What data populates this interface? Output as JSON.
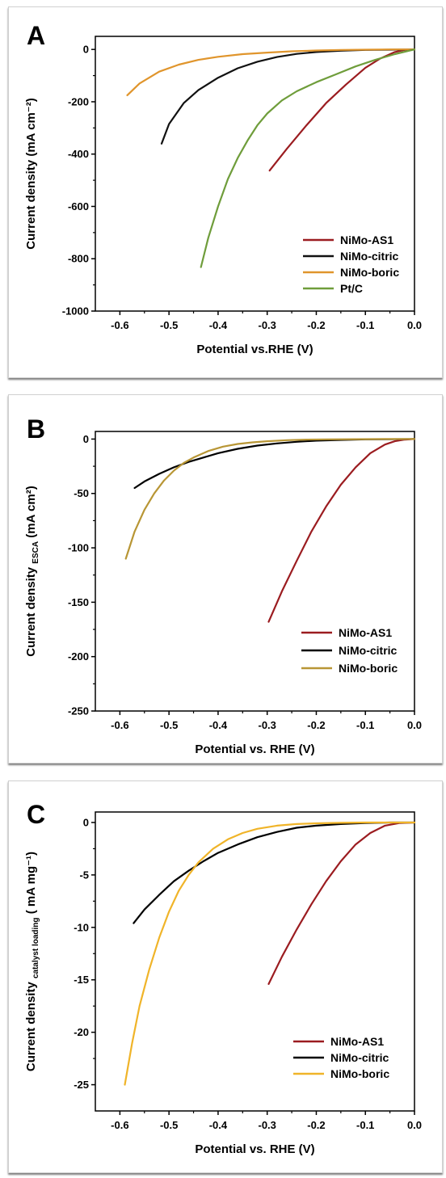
{
  "panels": [
    {
      "letter": "A",
      "chart_data": {
        "type": "line",
        "xlabel": "Potential vs.RHE (V)",
        "ylabel": "Current density (mA cm⁻²)",
        "xlim": [
          -0.65,
          0.0
        ],
        "ylim": [
          -1000,
          50
        ],
        "xticks": [
          -0.6,
          -0.5,
          -0.4,
          -0.3,
          -0.2,
          -0.1,
          0.0
        ],
        "xtick_labels": [
          "-0.6",
          "-0.5",
          "-0.4",
          "-0.3",
          "-0.2",
          "-0.1",
          "0.0"
        ],
        "yticks": [
          0,
          -200,
          -400,
          -600,
          -800,
          -1000
        ],
        "ytick_labels": [
          "0",
          "-200",
          "-400",
          "-600",
          "-800",
          "-1000"
        ],
        "legend_position": "bottom-right",
        "series": [
          {
            "name": "NiMo-AS1",
            "color": "#9b1c20",
            "x": [
              -0.295,
              -0.26,
              -0.22,
              -0.18,
              -0.14,
              -0.1,
              -0.07,
              -0.04,
              -0.02,
              0.0
            ],
            "y": [
              -463,
              -380,
              -290,
              -205,
              -135,
              -70,
              -35,
              -10,
              -2,
              0
            ]
          },
          {
            "name": "NiMo-citric",
            "color": "#111111",
            "x": [
              -0.515,
              -0.5,
              -0.47,
              -0.44,
              -0.4,
              -0.36,
              -0.32,
              -0.28,
              -0.24,
              -0.2,
              -0.15,
              -0.1,
              -0.05,
              0.0
            ],
            "y": [
              -360,
              -285,
              -205,
              -155,
              -108,
              -72,
              -47,
              -29,
              -17,
              -10,
              -5,
              -2,
              -1,
              0
            ]
          },
          {
            "name": "NiMo-boric",
            "color": "#e0952c",
            "x": [
              -0.585,
              -0.56,
              -0.52,
              -0.48,
              -0.44,
              -0.4,
              -0.35,
              -0.3,
              -0.25,
              -0.2,
              -0.15,
              -0.1,
              -0.05,
              0.0
            ],
            "y": [
              -175,
              -130,
              -85,
              -58,
              -40,
              -28,
              -18,
              -12,
              -7,
              -4,
              -2,
              -1,
              0,
              0
            ]
          },
          {
            "name": "Pt/C",
            "color": "#6f9d3b",
            "x": [
              -0.435,
              -0.42,
              -0.4,
              -0.38,
              -0.36,
              -0.34,
              -0.32,
              -0.3,
              -0.27,
              -0.24,
              -0.2,
              -0.16,
              -0.12,
              -0.08,
              -0.04,
              0.0
            ],
            "y": [
              -832,
              -720,
              -600,
              -495,
              -415,
              -348,
              -290,
              -245,
              -195,
              -160,
              -125,
              -95,
              -65,
              -40,
              -18,
              0
            ]
          }
        ]
      }
    },
    {
      "letter": "B",
      "chart_data": {
        "type": "line",
        "xlabel": "Potential vs. RHE (V)",
        "ylabel_main": "Current density",
        "ylabel_sub": "ESCA",
        "ylabel_unit": "(mA cm²)",
        "xlim": [
          -0.65,
          0.0
        ],
        "ylim": [
          -250,
          7
        ],
        "xticks": [
          -0.6,
          -0.5,
          -0.4,
          -0.3,
          -0.2,
          -0.1,
          0.0
        ],
        "xtick_labels": [
          "-0.6",
          "-0.5",
          "-0.4",
          "-0.3",
          "-0.2",
          "-0.1",
          "0.0"
        ],
        "yticks": [
          0,
          -50,
          -100,
          -150,
          -200,
          -250
        ],
        "ytick_labels": [
          "0",
          "-50",
          "-100",
          "-150",
          "-200",
          "-250"
        ],
        "legend_position": "bottom-right",
        "series": [
          {
            "name": "NiMo-AS1",
            "color": "#9b1c20",
            "x": [
              -0.297,
              -0.27,
              -0.24,
              -0.21,
              -0.18,
              -0.15,
              -0.12,
              -0.09,
              -0.06,
              -0.04,
              -0.02,
              0.0
            ],
            "y": [
              -168,
              -140,
              -112,
              -85,
              -62,
              -42,
              -26,
              -13,
              -5,
              -2,
              -0.5,
              0
            ]
          },
          {
            "name": "NiMo-citric",
            "color": "#000000",
            "x": [
              -0.57,
              -0.55,
              -0.52,
              -0.49,
              -0.46,
              -0.43,
              -0.4,
              -0.36,
              -0.32,
              -0.28,
              -0.24,
              -0.2,
              -0.15,
              -0.1,
              -0.05,
              0.0
            ],
            "y": [
              -45,
              -39,
              -32,
              -26,
              -21,
              -17,
              -13,
              -9,
              -6,
              -4,
              -2.5,
              -1.5,
              -0.8,
              -0.3,
              -0.1,
              0
            ]
          },
          {
            "name": "NiMo-boric",
            "color": "#b89635",
            "x": [
              -0.588,
              -0.57,
              -0.55,
              -0.53,
              -0.51,
              -0.49,
              -0.47,
              -0.45,
              -0.42,
              -0.39,
              -0.36,
              -0.33,
              -0.3,
              -0.26,
              -0.22,
              -0.18,
              -0.12,
              -0.06,
              0.0
            ],
            "y": [
              -110,
              -85,
              -65,
              -50,
              -38,
              -29,
              -22,
              -17,
              -11,
              -7,
              -4.5,
              -3,
              -2,
              -1,
              -0.5,
              -0.3,
              -0.1,
              0,
              0
            ]
          }
        ]
      }
    },
    {
      "letter": "C",
      "chart_data": {
        "type": "line",
        "xlabel": "Potential vs. RHE (V)",
        "ylabel_main": "Current density",
        "ylabel_sub": "catalyst loading",
        "ylabel_unit": "( mA mg⁻¹)",
        "xlim": [
          -0.65,
          0.0
        ],
        "ylim": [
          -27.5,
          1
        ],
        "xticks": [
          -0.6,
          -0.5,
          -0.4,
          -0.3,
          -0.2,
          -0.1,
          0.0
        ],
        "xtick_labels": [
          "-0.6",
          "-0.5",
          "-0.4",
          "-0.3",
          "-0.2",
          "-0.1",
          "0.0"
        ],
        "yticks": [
          0,
          -5,
          -10,
          -15,
          -20,
          -25
        ],
        "ytick_labels": [
          "0",
          "-5",
          "-10",
          "-15",
          "-20",
          "-25"
        ],
        "legend_position": "bottom-right",
        "series": [
          {
            "name": "NiMo-AS1",
            "color": "#9b1c20",
            "x": [
              -0.297,
              -0.27,
              -0.24,
              -0.21,
              -0.18,
              -0.15,
              -0.12,
              -0.09,
              -0.06,
              -0.03,
              0.0
            ],
            "y": [
              -15.4,
              -12.8,
              -10.2,
              -7.8,
              -5.6,
              -3.7,
              -2.1,
              -1,
              -0.3,
              -0.05,
              0
            ]
          },
          {
            "name": "NiMo-citric",
            "color": "#000000",
            "x": [
              -0.572,
              -0.55,
              -0.52,
              -0.49,
              -0.46,
              -0.43,
              -0.4,
              -0.36,
              -0.32,
              -0.28,
              -0.24,
              -0.2,
              -0.15,
              -0.1,
              -0.05,
              0.0
            ],
            "y": [
              -9.6,
              -8.3,
              -6.9,
              -5.6,
              -4.6,
              -3.7,
              -2.9,
              -2.1,
              -1.4,
              -0.9,
              -0.5,
              -0.3,
              -0.15,
              -0.05,
              0,
              0
            ]
          },
          {
            "name": "NiMo-boric",
            "color": "#f0b429",
            "x": [
              -0.59,
              -0.575,
              -0.56,
              -0.54,
              -0.52,
              -0.5,
              -0.48,
              -0.46,
              -0.44,
              -0.41,
              -0.38,
              -0.35,
              -0.32,
              -0.28,
              -0.24,
              -0.2,
              -0.15,
              -0.1,
              -0.05,
              0.0
            ],
            "y": [
              -25,
              -21,
              -17.5,
              -14,
              -11,
              -8.5,
              -6.5,
              -5,
              -3.8,
              -2.5,
              -1.6,
              -1,
              -0.6,
              -0.3,
              -0.15,
              -0.08,
              -0.03,
              0,
              0,
              0
            ]
          }
        ]
      }
    }
  ]
}
